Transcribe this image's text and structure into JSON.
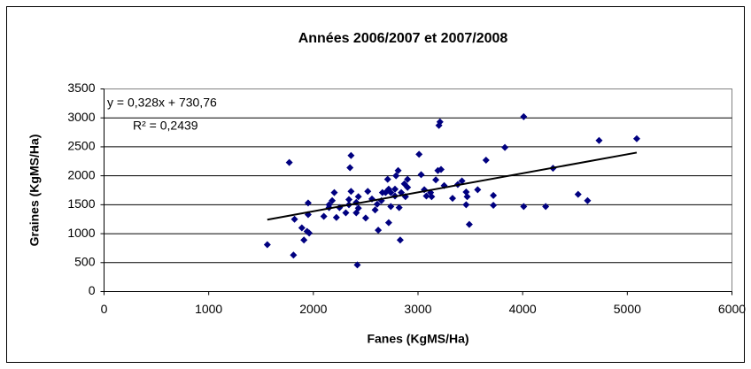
{
  "chart_data": {
    "type": "scatter",
    "title": "Années 2006/2007 et 2007/2008",
    "xlabel": "Fanes (KgMS/Ha)",
    "ylabel": "Graines (KgMS/Ha)",
    "series": [
      {
        "name": "Graines",
        "color": "#000080",
        "x": [
          1560,
          1770,
          1820,
          1810,
          1890,
          1910,
          1940,
          1950,
          1950,
          1960,
          2100,
          2150,
          2150,
          2180,
          2200,
          2250,
          2220,
          2310,
          2340,
          2340,
          2360,
          2360,
          2350,
          2410,
          2410,
          2430,
          2430,
          2420,
          2500,
          2520,
          2560,
          2590,
          2610,
          2620,
          2650,
          2660,
          2690,
          2720,
          2710,
          2720,
          2740,
          2740,
          2780,
          2780,
          2790,
          2840,
          2820,
          2830,
          2810,
          2870,
          2900,
          2880,
          2900,
          3010,
          3030,
          3060,
          3080,
          3120,
          3130,
          3190,
          3200,
          3210,
          3170,
          3220,
          3250,
          3380,
          3330,
          3420,
          3460,
          3470,
          3460,
          3490,
          3570,
          3650,
          3720,
          3720,
          3830,
          4010,
          4010,
          4220,
          4290,
          4530,
          4620,
          4730,
          5090
        ],
        "values": [
          810,
          2230,
          1250,
          630,
          1100,
          890,
          1040,
          1530,
          1330,
          1010,
          1300,
          1450,
          1500,
          1570,
          1710,
          1450,
          1280,
          1360,
          1500,
          1590,
          1730,
          2350,
          2140,
          1540,
          1360,
          1640,
          1440,
          460,
          1270,
          1730,
          1600,
          1410,
          1510,
          1060,
          1570,
          1710,
          1710,
          1190,
          1940,
          1770,
          1710,
          1470,
          1650,
          1770,
          2000,
          1710,
          1450,
          890,
          2090,
          1860,
          1940,
          1640,
          1800,
          2370,
          2020,
          1760,
          1650,
          1710,
          1640,
          2090,
          2870,
          2930,
          1930,
          2110,
          1830,
          1850,
          1610,
          1910,
          1720,
          1640,
          1500,
          1160,
          1760,
          2270,
          1660,
          1490,
          2490,
          3020,
          1470,
          1470,
          2130,
          1680,
          1570,
          2610,
          2640
        ]
      }
    ],
    "trendline": {
      "slope": 0.328,
      "intercept": 730.76,
      "color": "#000000",
      "equation": "y = 0,328x + 730,76",
      "r2": "R² = 0,2439"
    },
    "xlim": [
      0,
      6000
    ],
    "xticks": [
      0,
      1000,
      2000,
      3000,
      4000,
      5000,
      6000
    ],
    "ylim": [
      0,
      3500
    ],
    "yticks": [
      0,
      500,
      1000,
      1500,
      2000,
      2500,
      3000,
      3500
    ],
    "grid": true
  }
}
